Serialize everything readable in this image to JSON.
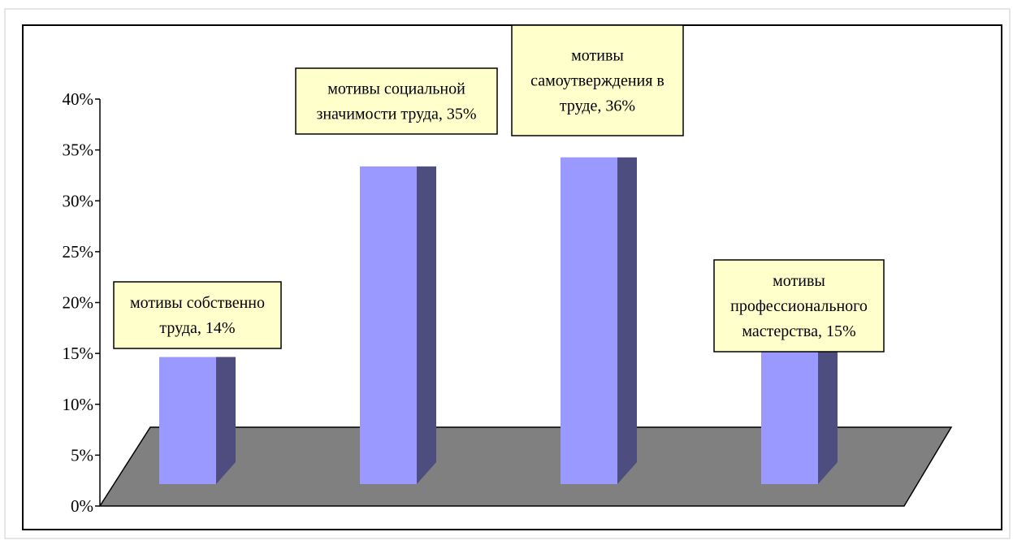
{
  "chart_data": {
    "type": "bar",
    "style": "3d-column",
    "categories": [
      "мотивы собственно труда",
      "мотивы социальной значимости труда",
      "мотивы самоутверждения в труде",
      "мотивы профессионального мастерства"
    ],
    "values": [
      14,
      35,
      36,
      15
    ],
    "value_unit": "%",
    "data_labels": [
      [
        "мотивы собственно",
        "труда, 14%"
      ],
      [
        "мотивы социальной",
        "значимости труда, 35%"
      ],
      [
        "мотивы",
        "самоутверждения в",
        "труде, 36%"
      ],
      [
        "мотивы",
        "профессионального",
        "мастерства, 15%"
      ]
    ],
    "y_ticks": [
      "0%",
      "5%",
      "10%",
      "15%",
      "20%",
      "25%",
      "30%",
      "35%",
      "40%"
    ],
    "ylim": [
      0,
      40
    ],
    "title": "",
    "xlabel": "",
    "ylabel": "",
    "grid": false,
    "legend": "none",
    "colors": {
      "bar_front": "#9999ff",
      "bar_side": "#4d4d80",
      "floor": "#808080",
      "label_fill": "#ffffcc",
      "axis": "#000000",
      "frame": "#000000",
      "outer_border": "#cccccc"
    }
  }
}
